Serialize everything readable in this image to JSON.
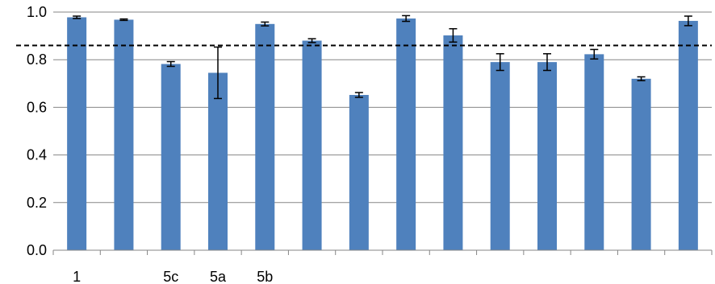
{
  "chart_data": {
    "type": "bar",
    "categories": [
      "1",
      "",
      "5c",
      "5a",
      "5b",
      "",
      "",
      "",
      "",
      "",
      "",
      "",
      "",
      ""
    ],
    "values": [
      0.978,
      0.968,
      0.782,
      0.745,
      0.95,
      0.88,
      0.652,
      0.973,
      0.902,
      0.79,
      0.79,
      0.823,
      0.72,
      0.963
    ],
    "errors": [
      0.005,
      0.003,
      0.01,
      0.108,
      0.008,
      0.008,
      0.01,
      0.012,
      0.028,
      0.035,
      0.035,
      0.02,
      0.008,
      0.02
    ],
    "reference_line": 0.86,
    "ylim": [
      0,
      1.0
    ],
    "yticks": [
      "0.0",
      "0.2",
      "0.4",
      "0.6",
      "0.8",
      "1.0"
    ],
    "title": "",
    "xlabel": "",
    "ylabel": "",
    "grid": true,
    "colors": {
      "bar": "#4f81bd",
      "grid": "#868686",
      "reference": "#000000"
    }
  }
}
